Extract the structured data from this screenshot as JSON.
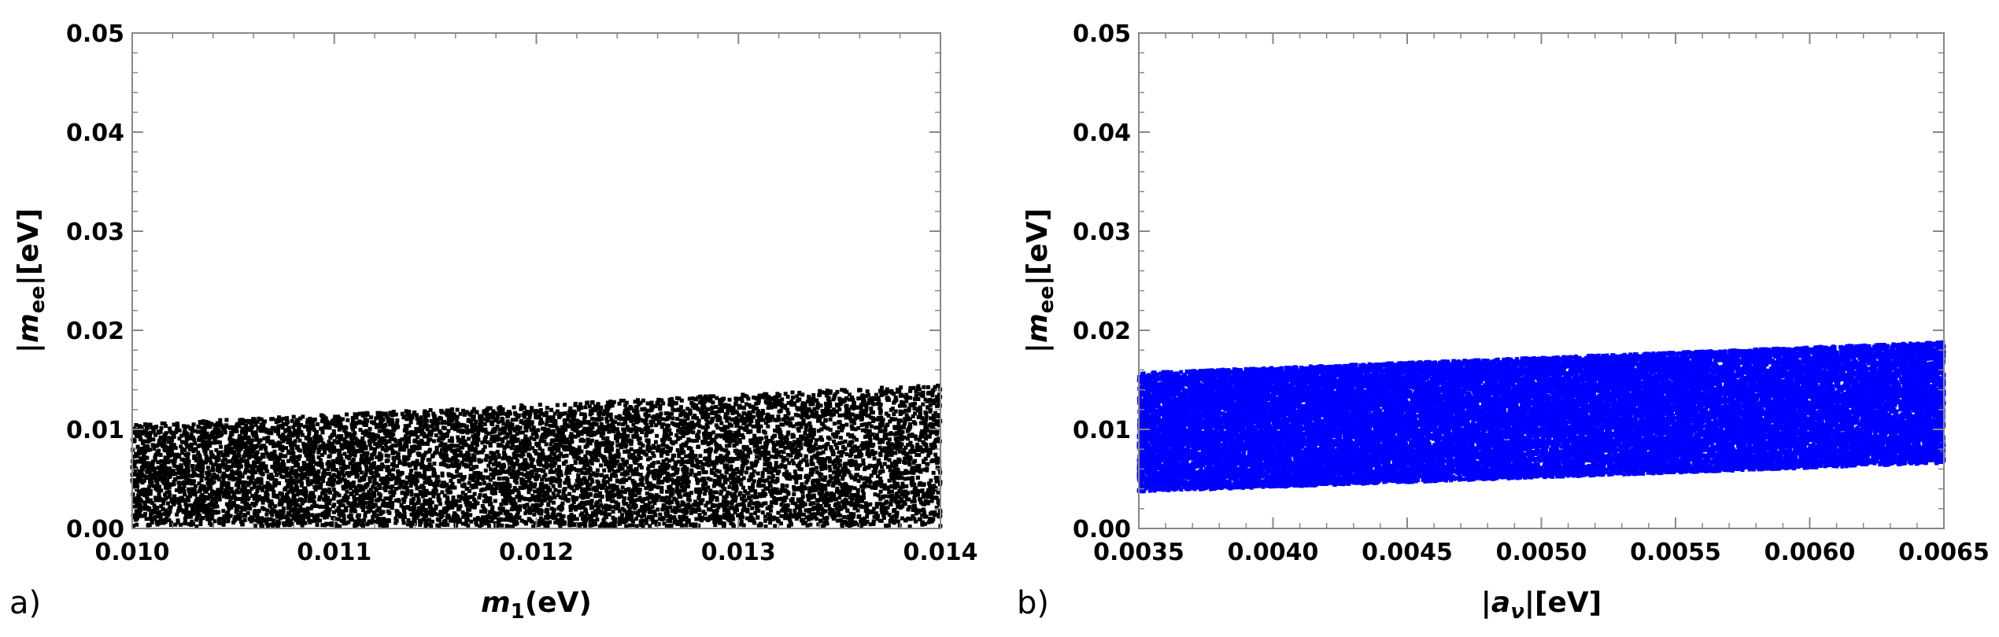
{
  "chart_data": [
    {
      "type": "scatter",
      "panel_label": "a)",
      "xlabel": {
        "main": "m",
        "sub": "1",
        "unit": "(eV)"
      },
      "ylabel": {
        "prefix": "|",
        "main": "m",
        "sub": "ee",
        "suffix": "|[eV]"
      },
      "xlim": [
        0.01,
        0.014
      ],
      "ylim": [
        0.0,
        0.05
      ],
      "xticks": [
        "0.010",
        "0.011",
        "0.012",
        "0.013",
        "0.014"
      ],
      "yticks": [
        "0.00",
        "0.01",
        "0.02",
        "0.03",
        "0.04",
        "0.05"
      ],
      "color": "#000000",
      "series": [
        {
          "density": 1,
          "point_count": 9000,
          "band": {
            "x": [
              0.01,
              0.014
            ],
            "lower": [
              0.0002,
              0.0002
            ],
            "upper": [
              0.0105,
              0.0145
            ]
          }
        }
      ]
    },
    {
      "type": "scatter",
      "panel_label": "b)",
      "xlabel": {
        "prefix": "|",
        "main": "a",
        "sub": "ν",
        "suffix": "|[eV]"
      },
      "ylabel": {
        "prefix": "|",
        "main": "m",
        "sub": "ee",
        "suffix": "|[eV]"
      },
      "xlim": [
        0.0035,
        0.0065
      ],
      "ylim": [
        0.0,
        0.05
      ],
      "xticks": [
        "0.0035",
        "0.0040",
        "0.0045",
        "0.0050",
        "0.0055",
        "0.0060",
        "0.0065"
      ],
      "yticks": [
        "0.00",
        "0.01",
        "0.02",
        "0.03",
        "0.04",
        "0.05"
      ],
      "color": "#0000ff",
      "series": [
        {
          "point_count": 30000,
          "band": {
            "x": [
              0.0035,
              0.0065
            ],
            "lower": [
              0.0037,
              0.0066
            ],
            "upper": [
              0.0157,
              0.0188
            ]
          }
        }
      ]
    }
  ]
}
